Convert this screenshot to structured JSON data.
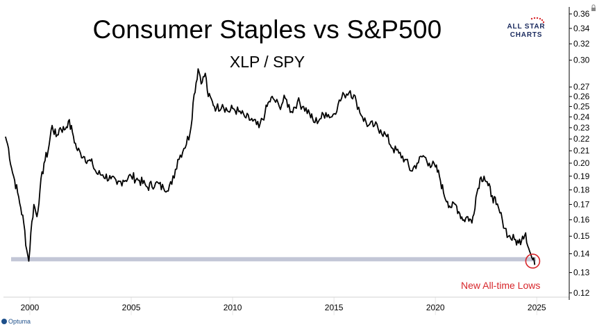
{
  "title": "Consumer Staples vs S&P500",
  "subtitle": "XLP / SPY",
  "logo": {
    "line1": "ALL STAR",
    "line2": "CHARTS",
    "star_color": "#d7262b",
    "text_color": "#1a2a5e"
  },
  "footer_brand": "Optuma",
  "annotation": "New All-time Lows",
  "colors": {
    "line": "#000000",
    "support_band": "#c2c6d6",
    "annotation": "#d7262b",
    "grid": "#e6e6e6"
  },
  "chart_data": {
    "type": "line",
    "title": "Consumer Staples vs S&P500",
    "subtitle": "XLP / SPY",
    "y_scale": "log",
    "ylim": [
      0.118,
      0.362
    ],
    "xlim": [
      1998.7,
      2026.6
    ],
    "grid": true,
    "x_ticks": [
      2000,
      2005,
      2010,
      2015,
      2020,
      2025
    ],
    "x_tick_labels": [
      "2000",
      "2005",
      "2010",
      "2015",
      "2020",
      "2025"
    ],
    "y_ticks": [
      0.12,
      0.13,
      0.14,
      0.15,
      0.16,
      0.17,
      0.18,
      0.19,
      0.2,
      0.21,
      0.22,
      0.23,
      0.24,
      0.25,
      0.26,
      0.27,
      0.3,
      0.32,
      0.34,
      0.36
    ],
    "y_tick_labels": [
      "0.12",
      "0.13",
      "0.14",
      "0.15",
      "0.16",
      "0.17",
      "0.18",
      "0.19",
      "0.20",
      "0.21",
      "0.22",
      "0.23",
      "0.24",
      "0.25",
      "0.26",
      "0.27",
      "0.30",
      "0.32",
      "0.34",
      "0.36"
    ],
    "support_level": 0.137,
    "annotation": {
      "text": "New All-time Lows",
      "x": 2024.8,
      "y": 0.136
    },
    "series": [
      {
        "x": [
          1998.8,
          1998.95,
          1999.1,
          1999.25,
          1999.4,
          1999.55,
          1999.7,
          1999.85,
          1999.95,
          2000.05,
          2000.2,
          2000.35,
          2000.5,
          2000.7,
          2000.9,
          2001.1,
          2001.3,
          2001.5,
          2001.7,
          2001.9,
          2002.1,
          2002.3,
          2002.5,
          2002.7,
          2002.9,
          2003.1,
          2003.3,
          2003.6,
          2004.0,
          2004.3,
          2004.6,
          2005.0,
          2005.4,
          2005.8,
          2006.2,
          2006.6,
          2007.0,
          2007.3,
          2007.6,
          2007.9,
          2008.1,
          2008.3,
          2008.5,
          2008.65,
          2008.8,
          2009.0,
          2009.2,
          2009.5,
          2009.8,
          2010.0,
          2010.3,
          2010.6,
          2011.0,
          2011.3,
          2011.6,
          2011.8,
          2012.0,
          2012.3,
          2012.6,
          2012.9,
          2013.2,
          2013.5,
          2013.8,
          2014.0,
          2014.3,
          2014.6,
          2014.9,
          2015.2,
          2015.5,
          2015.8,
          2016.1,
          2016.4,
          2016.7,
          2017.0,
          2017.3,
          2017.6,
          2017.9,
          2018.2,
          2018.5,
          2018.8,
          2019.1,
          2019.4,
          2019.7,
          2020.0,
          2020.2,
          2020.4,
          2020.6,
          2020.8,
          2021.0,
          2021.2,
          2021.4,
          2021.6,
          2021.8,
          2022.0,
          2022.2,
          2022.4,
          2022.6,
          2022.8,
          2023.0,
          2023.3,
          2023.6,
          2023.9,
          2024.1,
          2024.3,
          2024.45,
          2024.6,
          2024.75,
          2024.9
        ],
        "values": [
          0.222,
          0.212,
          0.196,
          0.187,
          0.178,
          0.168,
          0.158,
          0.142,
          0.136,
          0.152,
          0.17,
          0.162,
          0.18,
          0.2,
          0.21,
          0.232,
          0.222,
          0.23,
          0.228,
          0.236,
          0.226,
          0.212,
          0.208,
          0.205,
          0.202,
          0.199,
          0.192,
          0.191,
          0.188,
          0.184,
          0.187,
          0.19,
          0.187,
          0.182,
          0.185,
          0.181,
          0.184,
          0.203,
          0.212,
          0.225,
          0.262,
          0.29,
          0.275,
          0.285,
          0.26,
          0.255,
          0.248,
          0.252,
          0.245,
          0.248,
          0.245,
          0.24,
          0.236,
          0.23,
          0.244,
          0.255,
          0.258,
          0.25,
          0.258,
          0.245,
          0.255,
          0.25,
          0.243,
          0.235,
          0.238,
          0.244,
          0.24,
          0.252,
          0.262,
          0.266,
          0.255,
          0.24,
          0.232,
          0.232,
          0.228,
          0.222,
          0.212,
          0.208,
          0.203,
          0.194,
          0.2,
          0.206,
          0.2,
          0.197,
          0.19,
          0.178,
          0.172,
          0.168,
          0.17,
          0.164,
          0.16,
          0.162,
          0.158,
          0.175,
          0.188,
          0.19,
          0.183,
          0.176,
          0.17,
          0.16,
          0.15,
          0.148,
          0.146,
          0.15,
          0.152,
          0.143,
          0.138,
          0.134
        ]
      }
    ]
  }
}
